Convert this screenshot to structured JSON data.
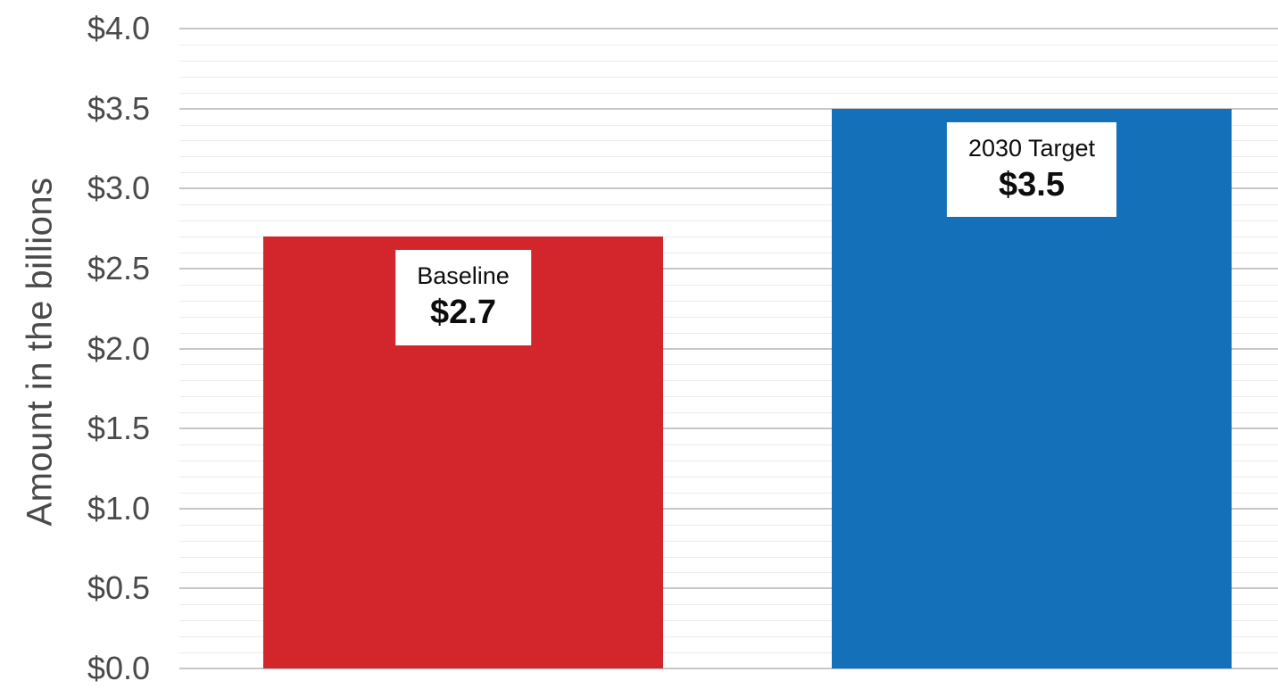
{
  "chart_data": {
    "type": "bar",
    "title": "",
    "xlabel": "",
    "ylabel": "Amount in the billions",
    "categories": [
      "Baseline",
      "2030 Target"
    ],
    "values": [
      2.7,
      3.5
    ],
    "value_labels": [
      "$2.7",
      "$3.5"
    ],
    "bar_colors": [
      "#d2252c",
      "#1470b8"
    ],
    "ylim": [
      0,
      4
    ],
    "yticks": [
      {
        "value": 0,
        "label": "$0.0"
      },
      {
        "value": 0.5,
        "label": "$0.5"
      },
      {
        "value": 1,
        "label": "$1.0"
      },
      {
        "value": 1.5,
        "label": "$1.5"
      },
      {
        "value": 2,
        "label": "$2.0"
      },
      {
        "value": 2.5,
        "label": "$2.5"
      },
      {
        "value": 3,
        "label": "$3.0"
      },
      {
        "value": 3.5,
        "label": "$3.5"
      },
      {
        "value": 4,
        "label": "$4.0"
      }
    ],
    "grid": {
      "major_interval": 0.5,
      "minor_interval": 0.1,
      "major_color": "#c7c7c7",
      "minor_color": "#ebebeb",
      "grid_on": true
    },
    "legend": "none",
    "background": "#ffffff",
    "axis_text_color": "#4a4a4a",
    "label_box": {
      "bg": "#ffffff",
      "text_color": "#0d0d0d"
    }
  }
}
